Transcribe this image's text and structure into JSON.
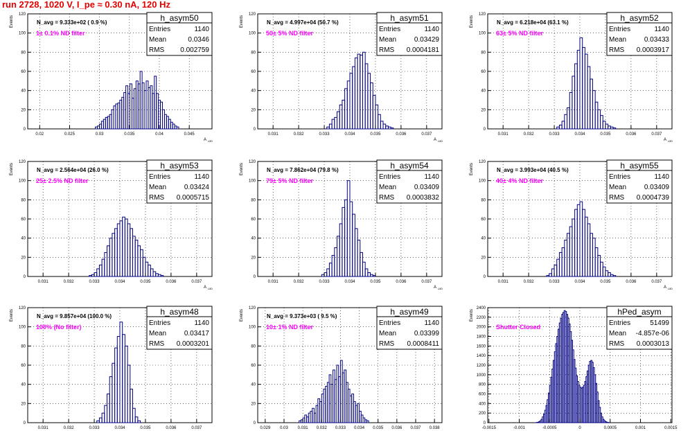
{
  "page_title": "run 2728,  1020 V, I_pe ≈ 0.30 nA, 120 Hz",
  "common": {
    "ylabel": "Events",
    "xlabel": "A",
    "xlabel_sub": "UID"
  },
  "colors": {
    "title": "#e00000",
    "annotation": "#ff00ff",
    "histogram": "#000080",
    "grid": "#000000"
  },
  "chart_data": [
    {
      "type": "bar",
      "name": "h_asym50",
      "stats": {
        "entries": "1140",
        "mean": "0.0346",
        "rms": "0.002759"
      },
      "navg": "N_avg = 9.333e+02 ( 0.9 %)",
      "annotation": "1± 0.1% ND filter",
      "xlim": [
        0.018,
        0.0488
      ],
      "ylim": [
        0,
        120
      ],
      "xticks": [
        "0.02",
        "0.025",
        "0.03",
        "0.035",
        "0.04",
        "0.045"
      ],
      "xtick_values": [
        0.02,
        0.025,
        0.03,
        0.035,
        0.04,
        0.045
      ],
      "yticks": [
        "0",
        "20",
        "40",
        "60",
        "80",
        "100",
        "120"
      ],
      "ytick_values": [
        0,
        20,
        40,
        60,
        80,
        100,
        120
      ],
      "bin_start": 0.0293,
      "bin_width": 0.00034,
      "values": [
        2,
        3,
        5,
        8,
        10,
        12,
        13,
        15,
        20,
        24,
        26,
        27,
        30,
        33,
        38,
        45,
        37,
        47,
        32,
        42,
        50,
        47,
        60,
        48,
        40,
        50,
        43,
        45,
        37,
        55,
        37,
        30,
        28,
        20,
        15,
        13,
        10,
        7,
        5,
        3,
        2
      ]
    },
    {
      "type": "bar",
      "name": "h_asym51",
      "stats": {
        "entries": "1140",
        "mean": "0.03429",
        "rms": "0.0004181"
      },
      "navg": "N_avg = 4.997e+04 (50.7 %)",
      "annotation": "50± 5% ND filter",
      "xlim": [
        0.0304,
        0.0376
      ],
      "ylim": [
        0,
        120
      ],
      "xticks": [
        "0.031",
        "0.032",
        "0.033",
        "0.034",
        "0.035",
        "0.036",
        "0.037"
      ],
      "xtick_values": [
        0.031,
        0.032,
        0.033,
        0.034,
        0.035,
        0.036,
        0.037
      ],
      "yticks": [
        "0",
        "20",
        "40",
        "60",
        "80",
        "100",
        "120"
      ],
      "ytick_values": [
        0,
        20,
        40,
        60,
        80,
        100,
        120
      ],
      "bin_start": 0.0331,
      "bin_width": 0.0001,
      "values": [
        2,
        5,
        10,
        12,
        18,
        25,
        30,
        42,
        50,
        58,
        65,
        74,
        78,
        77,
        80,
        68,
        58,
        48,
        35,
        25,
        15,
        8,
        5,
        3,
        2,
        1
      ]
    },
    {
      "type": "bar",
      "name": "h_asym52",
      "stats": {
        "entries": "1140",
        "mean": "0.03433",
        "rms": "0.0003917"
      },
      "navg": "N_avg = 6.218e+04 (63.1 %)",
      "annotation": "63± 5% ND filter",
      "xlim": [
        0.0304,
        0.0376
      ],
      "ylim": [
        0,
        120
      ],
      "xticks": [
        "0.031",
        "0.032",
        "0.033",
        "0.034",
        "0.035",
        "0.036",
        "0.037"
      ],
      "xtick_values": [
        0.031,
        0.032,
        0.033,
        0.034,
        0.035,
        0.036,
        0.037
      ],
      "yticks": [
        "0",
        "20",
        "40",
        "60",
        "80",
        "100",
        "120"
      ],
      "ytick_values": [
        0,
        20,
        40,
        60,
        80,
        100,
        120
      ],
      "bin_start": 0.0331,
      "bin_width": 0.0001,
      "values": [
        2,
        4,
        8,
        15,
        22,
        38,
        55,
        68,
        82,
        95,
        85,
        78,
        65,
        52,
        40,
        28,
        20,
        14,
        8,
        5,
        3,
        2,
        1
      ]
    },
    {
      "type": "bar",
      "name": "h_asym53",
      "stats": {
        "entries": "1140",
        "mean": "0.03424",
        "rms": "0.0005715"
      },
      "navg": "N_avg = 2.564e+04 (26.0 %)",
      "annotation": "25± 2.5% ND filter",
      "xlim": [
        0.0304,
        0.0376
      ],
      "ylim": [
        0,
        120
      ],
      "xticks": [
        "0.031",
        "0.032",
        "0.033",
        "0.034",
        "0.035",
        "0.036",
        "0.037"
      ],
      "xtick_values": [
        0.031,
        0.032,
        0.033,
        0.034,
        0.035,
        0.036,
        0.037
      ],
      "yticks": [
        "0",
        "20",
        "40",
        "60",
        "80",
        "100",
        "120"
      ],
      "ytick_values": [
        0,
        20,
        40,
        60,
        80,
        100,
        120
      ],
      "bin_start": 0.0328,
      "bin_width": 0.0001,
      "values": [
        1,
        2,
        4,
        8,
        12,
        18,
        25,
        32,
        40,
        45,
        50,
        55,
        58,
        62,
        60,
        55,
        50,
        42,
        38,
        32,
        28,
        20,
        15,
        12,
        8,
        5,
        3,
        2,
        1
      ]
    },
    {
      "type": "bar",
      "name": "h_asym54",
      "stats": {
        "entries": "1140",
        "mean": "0.03409",
        "rms": "0.0003832"
      },
      "navg": "N_avg = 7.862e+04 (79.8 %)",
      "annotation": "79± 5% ND filter",
      "xlim": [
        0.0304,
        0.0376
      ],
      "ylim": [
        0,
        120
      ],
      "xticks": [
        "0.031",
        "0.032",
        "0.033",
        "0.034",
        "0.035",
        "0.036",
        "0.037"
      ],
      "xtick_values": [
        0.031,
        0.032,
        0.033,
        0.034,
        0.035,
        0.036,
        0.037
      ],
      "yticks": [
        "0",
        "20",
        "40",
        "60",
        "80",
        "100",
        "120"
      ],
      "ytick_values": [
        0,
        20,
        40,
        60,
        80,
        100,
        120
      ],
      "bin_start": 0.0329,
      "bin_width": 0.0001,
      "values": [
        2,
        4,
        8,
        14,
        22,
        30,
        42,
        55,
        72,
        80,
        100,
        78,
        65,
        50,
        38,
        25,
        15,
        8,
        4,
        2,
        1
      ]
    },
    {
      "type": "bar",
      "name": "h_asym55",
      "stats": {
        "entries": "1140",
        "mean": "0.03409",
        "rms": "0.0004739"
      },
      "navg": "N_avg = 3.993e+04 (40.5 %)",
      "annotation": "40± 4% ND filter",
      "xlim": [
        0.0304,
        0.0376
      ],
      "ylim": [
        0,
        120
      ],
      "xticks": [
        "0.031",
        "0.032",
        "0.033",
        "0.034",
        "0.035",
        "0.036",
        "0.037"
      ],
      "xtick_values": [
        0.031,
        0.032,
        0.033,
        0.034,
        0.035,
        0.036,
        0.037
      ],
      "yticks": [
        "0",
        "20",
        "40",
        "60",
        "80",
        "100",
        "120"
      ],
      "ytick_values": [
        0,
        20,
        40,
        60,
        80,
        100,
        120
      ],
      "bin_start": 0.0327,
      "bin_width": 0.0001,
      "values": [
        1,
        3,
        8,
        12,
        18,
        25,
        30,
        38,
        45,
        52,
        60,
        70,
        75,
        78,
        70,
        62,
        55,
        45,
        40,
        30,
        22,
        15,
        10,
        6,
        4,
        2,
        1
      ]
    },
    {
      "type": "bar",
      "name": "h_asym48",
      "stats": {
        "entries": "1140",
        "mean": "0.03417",
        "rms": "0.0003201"
      },
      "navg": "N_avg = 9.857e+04 (100.0 %)",
      "annotation": "100% (No filter)",
      "xlim": [
        0.0304,
        0.0376
      ],
      "ylim": [
        0,
        120
      ],
      "xticks": [
        "0.031",
        "0.032",
        "0.033",
        "0.034",
        "0.035",
        "0.036",
        "0.037"
      ],
      "xtick_values": [
        0.031,
        0.032,
        0.033,
        0.034,
        0.035,
        0.036,
        0.037
      ],
      "yticks": [
        "0",
        "20",
        "40",
        "60",
        "80",
        "100",
        "120"
      ],
      "ytick_values": [
        0,
        20,
        40,
        60,
        80,
        100,
        120
      ],
      "bin_start": 0.0331,
      "bin_width": 0.0001,
      "values": [
        2,
        5,
        10,
        18,
        30,
        48,
        62,
        78,
        90,
        105,
        92,
        80,
        60,
        35,
        15,
        6,
        2
      ]
    },
    {
      "type": "bar",
      "name": "h_asym49",
      "stats": {
        "entries": "1140",
        "mean": "0.03399",
        "rms": "0.0008411"
      },
      "navg": "N_avg = 9.373e+03 ( 9.5 %)",
      "annotation": "10± 1% ND filter",
      "xlim": [
        0.0286,
        0.0384
      ],
      "ylim": [
        0,
        120
      ],
      "xticks": [
        "0.029",
        "0.03",
        "0.031",
        "0.032",
        "0.033",
        "0.034",
        "0.035",
        "0.036",
        "0.037",
        "0.038"
      ],
      "xtick_values": [
        0.029,
        0.03,
        0.031,
        0.032,
        0.033,
        0.034,
        0.035,
        0.036,
        0.037,
        0.038
      ],
      "yticks": [
        "0",
        "20",
        "40",
        "60",
        "80",
        "100",
        "120"
      ],
      "ytick_values": [
        0,
        20,
        40,
        60,
        80,
        100,
        120
      ],
      "bin_start": 0.0308,
      "bin_width": 0.0001,
      "values": [
        2,
        3,
        5,
        8,
        6,
        10,
        12,
        15,
        10,
        18,
        25,
        22,
        30,
        35,
        38,
        42,
        50,
        40,
        55,
        45,
        60,
        48,
        65,
        52,
        55,
        42,
        35,
        28,
        30,
        22,
        18,
        20,
        12,
        8,
        5,
        3,
        2
      ]
    },
    {
      "type": "bar",
      "name": "hPed_asym",
      "stats": {
        "entries": "51499",
        "mean": "-4.857e-06",
        "rms": "0.0003013"
      },
      "navg": "",
      "annotation": "Shutter Closed",
      "xlim": [
        -0.00152,
        0.00152
      ],
      "ylim": [
        0,
        2400
      ],
      "xticks": [
        "-0.0015",
        "-0.001",
        "-0.0005",
        "0",
        "0.0005",
        "0.001",
        "0.0015"
      ],
      "xtick_values": [
        -0.0015,
        -0.001,
        -0.0005,
        0,
        0.0005,
        0.001,
        0.0015
      ],
      "yticks": [
        "0",
        "200",
        "400",
        "600",
        "800",
        "1000",
        "1200",
        "1400",
        "1600",
        "1800",
        "2000",
        "2200",
        "2400"
      ],
      "ytick_values": [
        0,
        200,
        400,
        600,
        800,
        1000,
        1200,
        1400,
        1600,
        1800,
        2000,
        2200,
        2400
      ],
      "bin_start": -0.00072,
      "bin_width": 2e-05,
      "values": [
        5,
        10,
        20,
        40,
        70,
        120,
        180,
        260,
        360,
        480,
        620,
        780,
        950,
        1120,
        1300,
        1480,
        1650,
        1800,
        1950,
        2080,
        2180,
        2260,
        2300,
        2340,
        2320,
        2260,
        2180,
        2060,
        1900,
        1720,
        1520,
        1320,
        1140,
        980,
        860,
        780,
        740,
        720,
        740,
        780,
        860,
        960,
        1080,
        1200,
        1280,
        1300,
        1260,
        1150,
        1000,
        820,
        640,
        460,
        320,
        200,
        120,
        70,
        40,
        20,
        10,
        5
      ]
    }
  ]
}
